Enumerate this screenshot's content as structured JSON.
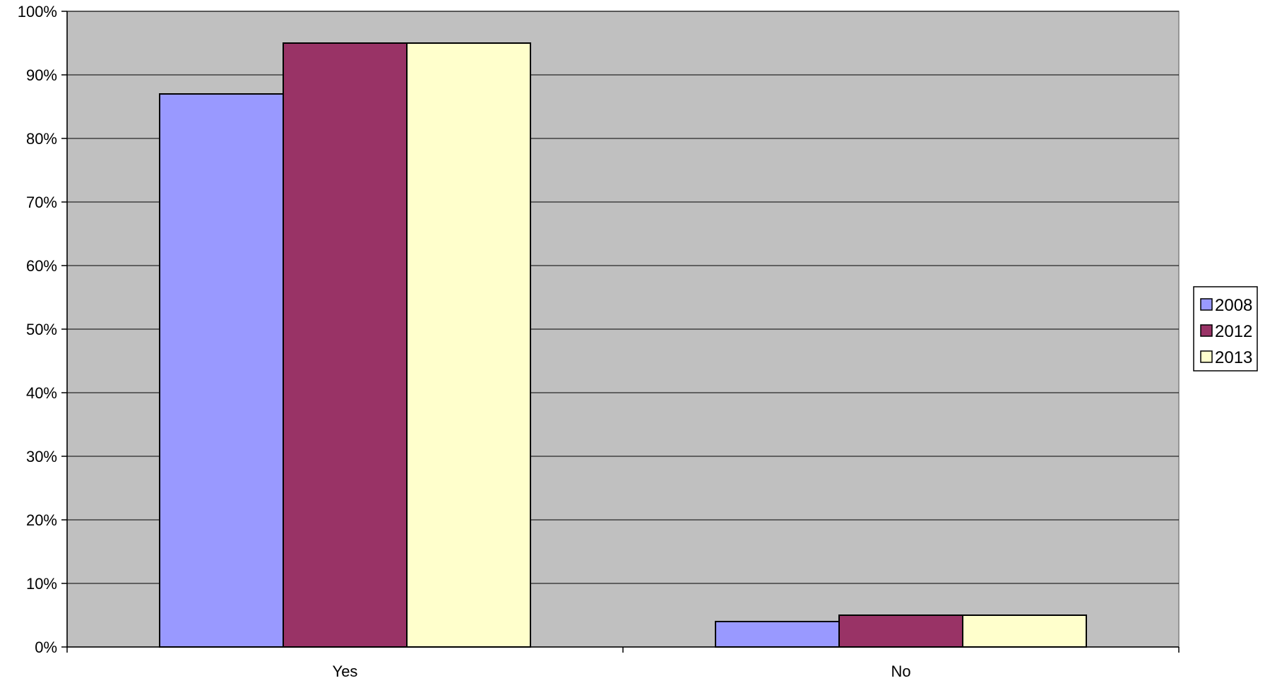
{
  "chart_data": {
    "type": "bar",
    "title": "",
    "xlabel": "",
    "ylabel": "",
    "categories": [
      "Yes",
      "No"
    ],
    "series": [
      {
        "name": "2008",
        "values": [
          87,
          4
        ],
        "color": "#9999FF"
      },
      {
        "name": "2012",
        "values": [
          95,
          5
        ],
        "color": "#993366"
      },
      {
        "name": "2013",
        "values": [
          95,
          5
        ],
        "color": "#FFFFCC"
      }
    ],
    "ylim": [
      0,
      100
    ],
    "yticks": [
      0,
      10,
      20,
      30,
      40,
      50,
      60,
      70,
      80,
      90,
      100
    ],
    "ytick_labels": [
      "0%",
      "10%",
      "20%",
      "30%",
      "40%",
      "50%",
      "60%",
      "70%",
      "80%",
      "90%",
      "100%"
    ],
    "grid": true,
    "legend_position": "right",
    "plot_background": "#C0C0C0"
  }
}
